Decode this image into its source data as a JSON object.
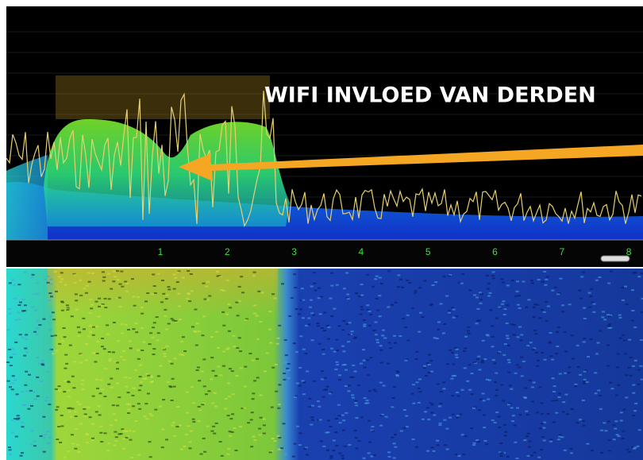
{
  "annotation": {
    "text": "WIFI INVLOED VAN DERDEN"
  },
  "channel_axis": {
    "labels": [
      "1",
      "2",
      "3",
      "4",
      "5",
      "6",
      "7",
      "8"
    ]
  }
}
